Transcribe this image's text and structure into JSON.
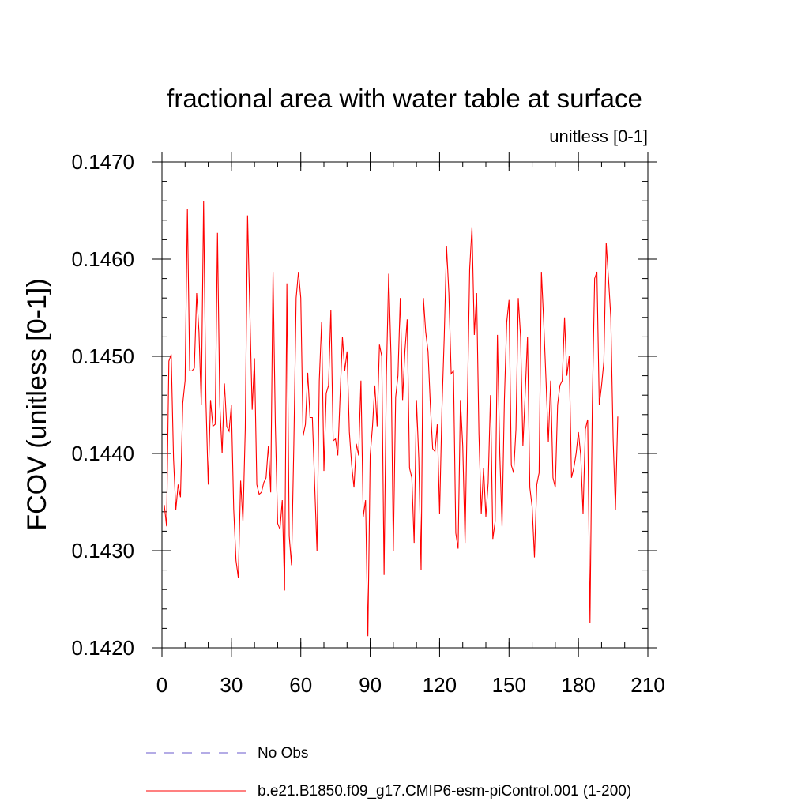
{
  "chart_data": {
    "type": "line",
    "title": "fractional area with water table at surface",
    "subtitle": "unitless [0-1]",
    "ylabel": "FCOV  (unitless [0-1])",
    "xlabel": "",
    "xlim": [
      0,
      210
    ],
    "ylim": [
      0.142,
      0.147
    ],
    "x_ticks": [
      0,
      30,
      60,
      90,
      120,
      150,
      180,
      210
    ],
    "x_tick_labels": [
      "0",
      "30",
      "60",
      "90",
      "120",
      "150",
      "180",
      "210"
    ],
    "y_ticks": [
      0.142,
      0.143,
      0.144,
      0.145,
      0.146,
      0.147
    ],
    "y_tick_labels": [
      "0.1420",
      "0.1430",
      "0.1440",
      "0.1450",
      "0.1460",
      "0.1470"
    ],
    "grid": false,
    "legend_position": "bottom",
    "series": [
      {
        "name": "b.e21.B1850.f09_g17.CMIP6-esm-piControl.001 (1-200)",
        "color": "#ff0000",
        "style": "solid",
        "x_start": 1,
        "values": [
          0.14347,
          0.14325,
          0.14495,
          0.14502,
          0.14395,
          0.14342,
          0.14368,
          0.14355,
          0.14452,
          0.14475,
          0.14652,
          0.14485,
          0.14485,
          0.14488,
          0.14565,
          0.14525,
          0.1445,
          0.1466,
          0.14455,
          0.14368,
          0.14455,
          0.14428,
          0.1443,
          0.14627,
          0.1445,
          0.144,
          0.14472,
          0.14428,
          0.14423,
          0.1445,
          0.14343,
          0.1429,
          0.14272,
          0.14372,
          0.1433,
          0.14425,
          0.14645,
          0.14545,
          0.14445,
          0.14498,
          0.14368,
          0.14358,
          0.1436,
          0.1437,
          0.14375,
          0.14408,
          0.1436,
          0.14587,
          0.1443,
          0.14328,
          0.14322,
          0.14352,
          0.14259,
          0.14575,
          0.14315,
          0.14285,
          0.1441,
          0.1456,
          0.14587,
          0.1456,
          0.14418,
          0.1443,
          0.14483,
          0.14437,
          0.14437,
          0.14368,
          0.143,
          0.14475,
          0.14535,
          0.14382,
          0.14462,
          0.1447,
          0.14548,
          0.14413,
          0.14415,
          0.14398,
          0.1446,
          0.1452,
          0.14485,
          0.14505,
          0.14422,
          0.14388,
          0.14365,
          0.1441,
          0.14398,
          0.14475,
          0.14335,
          0.14352,
          0.14212,
          0.14398,
          0.14428,
          0.1447,
          0.14428,
          0.14512,
          0.145,
          0.14275,
          0.1448,
          0.14585,
          0.145,
          0.143,
          0.14458,
          0.1448,
          0.1456,
          0.14455,
          0.14505,
          0.14538,
          0.14385,
          0.14375,
          0.14308,
          0.14455,
          0.14395,
          0.1428,
          0.1456,
          0.14525,
          0.14505,
          0.1445,
          0.14405,
          0.14402,
          0.1443,
          0.14338,
          0.14445,
          0.1452,
          0.14613,
          0.14565,
          0.14482,
          0.14485,
          0.14318,
          0.14302,
          0.14455,
          0.14408,
          0.14308,
          0.1445,
          0.1459,
          0.14633,
          0.14522,
          0.14565,
          0.1442,
          0.14338,
          0.14385,
          0.14335,
          0.1437,
          0.1446,
          0.14312,
          0.1433,
          0.14522,
          0.144,
          0.14325,
          0.14455,
          0.14535,
          0.14558,
          0.14388,
          0.1438,
          0.14425,
          0.1456,
          0.1452,
          0.14408,
          0.14462,
          0.1452,
          0.14365,
          0.14345,
          0.14293,
          0.14368,
          0.1438,
          0.14587,
          0.14535,
          0.14475,
          0.14412,
          0.14475,
          0.14375,
          0.14365,
          0.1445,
          0.1447,
          0.14475,
          0.1454,
          0.1448,
          0.145,
          0.14375,
          0.14385,
          0.144,
          0.14422,
          0.14398,
          0.14338,
          0.14425,
          0.14435,
          0.14226,
          0.1445,
          0.1458,
          0.14587,
          0.1445,
          0.1447,
          0.14495,
          0.14617,
          0.1458,
          0.1454,
          0.14415,
          0.14342,
          0.14438
        ]
      }
    ],
    "legend": [
      {
        "label": "No Obs",
        "color": "#6a5acd",
        "style": "dashed"
      },
      {
        "label": "b.e21.B1850.f09_g17.CMIP6-esm-piControl.001 (1-200)",
        "color": "#ff0000",
        "style": "solid"
      }
    ]
  }
}
